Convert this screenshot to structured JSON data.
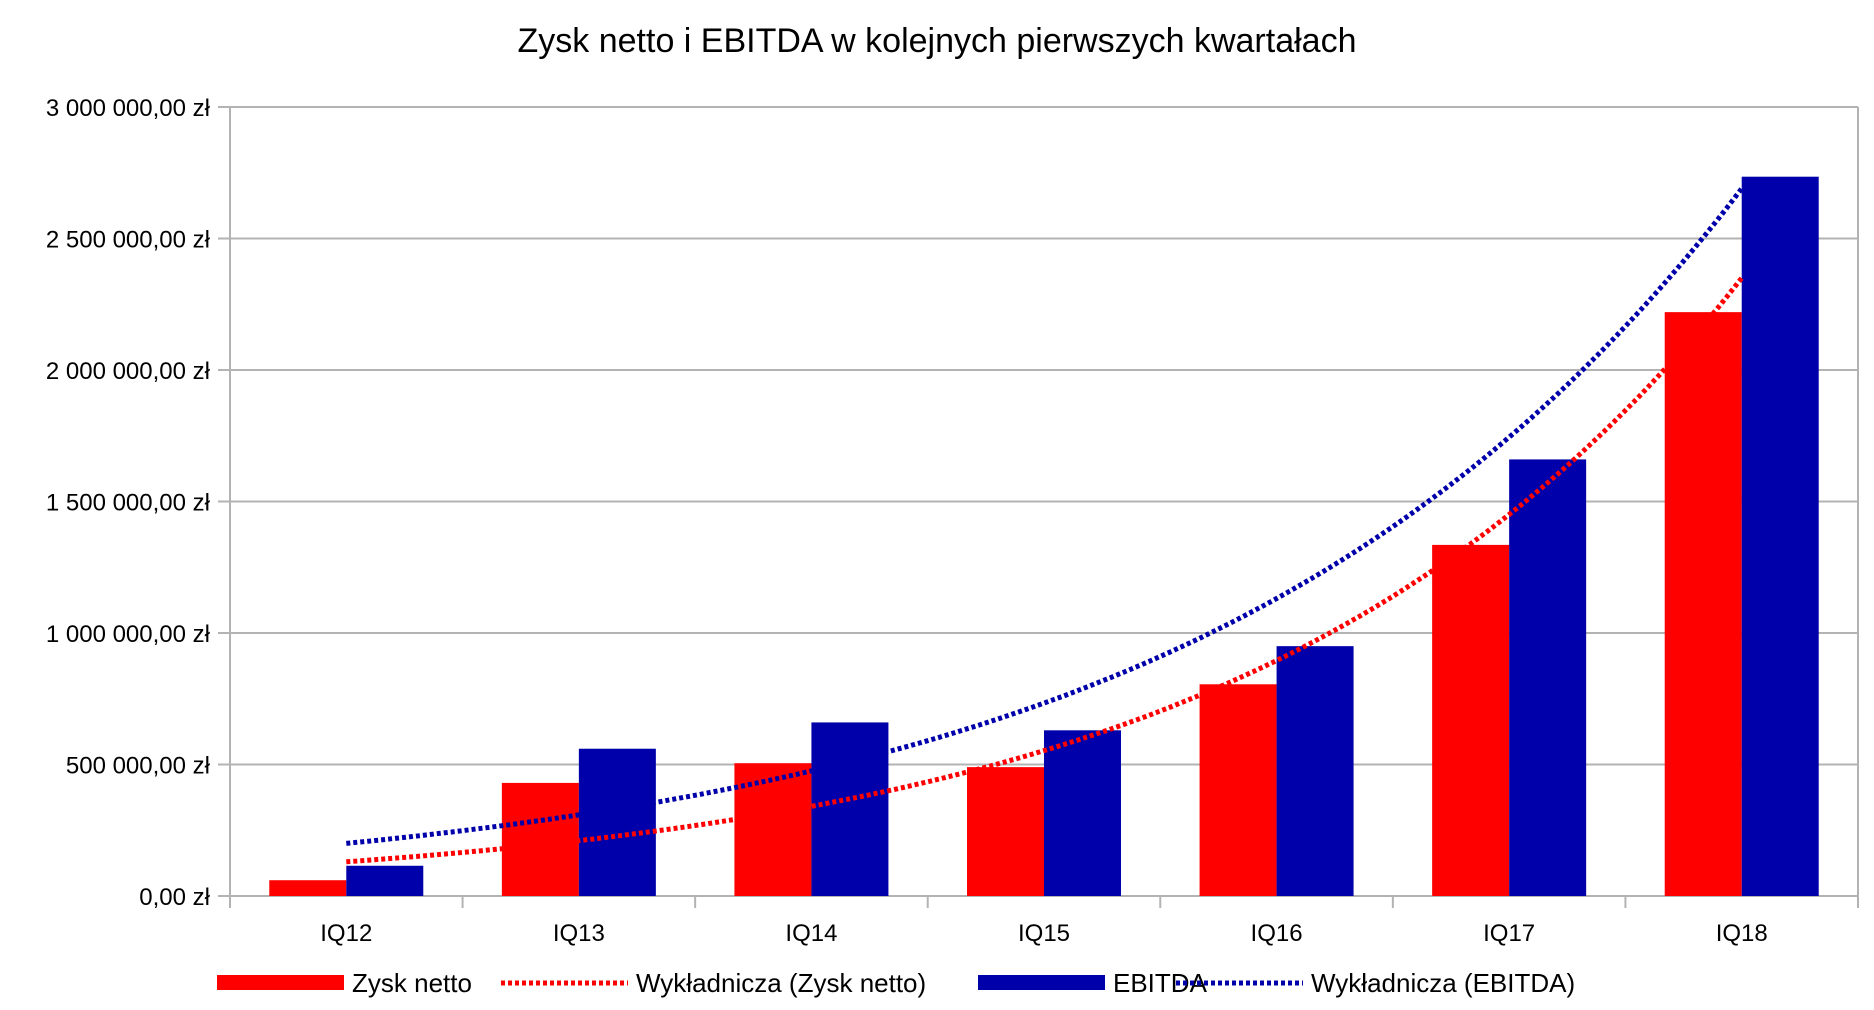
{
  "chart_data": {
    "type": "bar",
    "title": "Zysk netto i EBITDA w kolejnych pierwszych kwartałach",
    "xlabel": "",
    "ylabel": "",
    "categories": [
      "IQ12",
      "IQ13",
      "IQ14",
      "IQ15",
      "IQ16",
      "IQ17",
      "IQ18"
    ],
    "ylim": [
      0,
      3000000
    ],
    "y_ticks": [
      0,
      500000,
      1000000,
      1500000,
      2000000,
      2500000,
      3000000
    ],
    "y_tick_labels": [
      "0,00 zł",
      "500 000,00 zł",
      "1 000 000,00 zł",
      "1 500 000,00 zł",
      "2 000 000,00 zł",
      "2 500 000,00 zł",
      "3 000 000,00 zł"
    ],
    "grid": true,
    "legend_position": "bottom",
    "series": [
      {
        "name": "Zysk netto",
        "color": "#ff0000",
        "values": [
          60000,
          430000,
          505000,
          490000,
          805000,
          1335000,
          2220000
        ]
      },
      {
        "name": "EBITDA",
        "color": "#0000aa",
        "values": [
          115000,
          560000,
          660000,
          630000,
          950000,
          1660000,
          2735000
        ]
      }
    ],
    "trendlines": [
      {
        "name": "Wykładnicza (Zysk netto)",
        "type": "exponential",
        "series": "Zysk netto",
        "color": "#ff0000",
        "start_value": 130000,
        "end_value": 2350000
      },
      {
        "name": "Wykładnicza (EBITDA)",
        "type": "exponential",
        "series": "EBITDA",
        "color": "#0000aa",
        "start_value": 200000,
        "end_value": 2690000
      }
    ],
    "legend": [
      {
        "label": "Zysk netto",
        "kind": "bar",
        "color": "#ff0000"
      },
      {
        "label": "Wykładnicza (Zysk netto)",
        "kind": "line",
        "color": "#ff0000"
      },
      {
        "label": "EBITDA",
        "kind": "bar",
        "color": "#0000aa"
      },
      {
        "label": "Wykładnicza (EBITDA)",
        "kind": "line",
        "color": "#0000aa"
      }
    ]
  }
}
